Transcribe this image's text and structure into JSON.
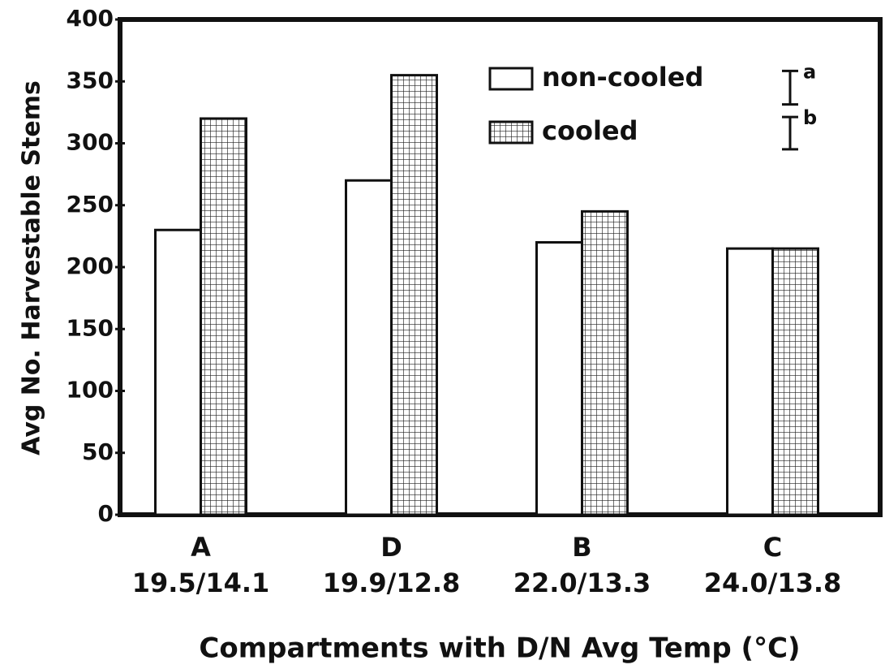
{
  "chart_data": {
    "type": "bar",
    "categories": [
      "A",
      "D",
      "B",
      "C"
    ],
    "category_temps": [
      "19.5/14.1",
      "19.9/12.8",
      "22.0/13.3",
      "24.0/13.8"
    ],
    "series": [
      {
        "name": "non-cooled",
        "color": "#ffffff",
        "values": [
          230,
          270,
          220,
          215
        ]
      },
      {
        "name": "cooled",
        "color": "#ffffff",
        "hatch": "grid",
        "values": [
          320,
          355,
          245,
          215
        ]
      }
    ],
    "error_bars": [
      {
        "label": "a",
        "value": 27
      },
      {
        "label": "b",
        "value": 26
      }
    ],
    "xlabel": "Compartments with D/N Avg Temp (°C)",
    "ylabel": "Avg No. Harvestable Stems",
    "ylim": [
      0,
      400
    ],
    "yticks": [
      0,
      50,
      100,
      150,
      200,
      250,
      300,
      350,
      400
    ],
    "legend": "top-right"
  }
}
